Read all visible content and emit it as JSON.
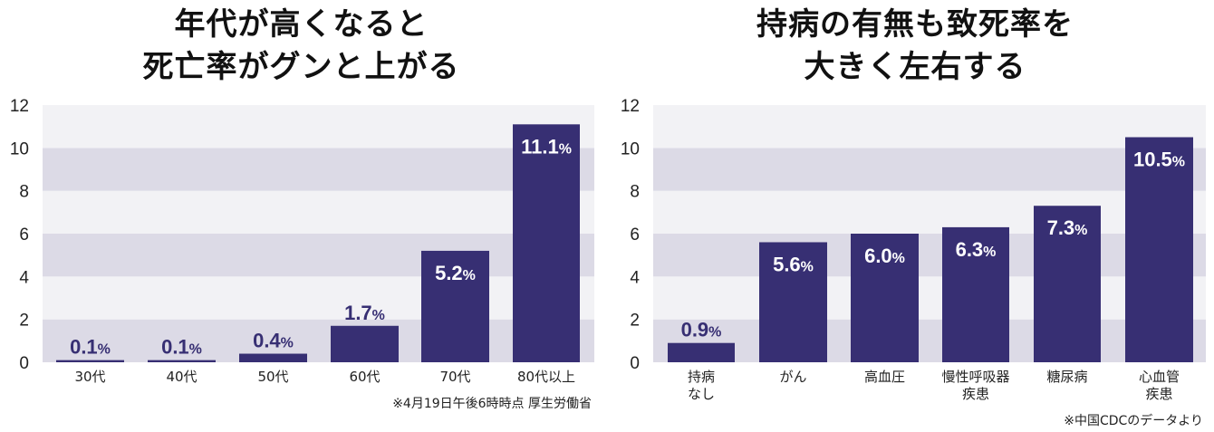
{
  "colors": {
    "bar": "#372f73",
    "band_dark": "#dcdae6",
    "band_light": "#f2f2f5",
    "label_dark": "#372f73",
    "label_light": "#ffffff"
  },
  "chart_data": [
    {
      "type": "bar",
      "title_lines": [
        "年代が高くなると",
        "死亡率がグンと上がる"
      ],
      "categories": [
        [
          "30代"
        ],
        [
          "40代"
        ],
        [
          "50代"
        ],
        [
          "60代"
        ],
        [
          "70代"
        ],
        [
          "80代以上"
        ]
      ],
      "values": [
        0.1,
        0.1,
        0.4,
        1.7,
        5.2,
        11.1
      ],
      "labels": [
        "0.1",
        "0.1",
        "0.4",
        "1.7",
        "5.2",
        "11.1"
      ],
      "unit": "%",
      "ylim": [
        0,
        12
      ],
      "yticks": [
        "0",
        "2",
        "4",
        "6",
        "8",
        "10",
        "12"
      ],
      "note": "※4月19日午後6時時点 厚生労働省"
    },
    {
      "type": "bar",
      "title_lines": [
        "持病の有無も致死率を",
        "大きく左右する"
      ],
      "categories": [
        [
          "持病",
          "なし"
        ],
        [
          "がん"
        ],
        [
          "高血圧"
        ],
        [
          "慢性呼吸器",
          "疾患"
        ],
        [
          "糖尿病"
        ],
        [
          "心血管",
          "疾患"
        ]
      ],
      "values": [
        0.9,
        5.6,
        6.0,
        6.3,
        7.3,
        10.5
      ],
      "labels": [
        "0.9",
        "5.6",
        "6.0",
        "6.3",
        "7.3",
        "10.5"
      ],
      "unit": "%",
      "ylim": [
        0,
        12
      ],
      "yticks": [
        "0",
        "2",
        "4",
        "6",
        "8",
        "10",
        "12"
      ],
      "note": "※中国CDCのデータより"
    }
  ]
}
